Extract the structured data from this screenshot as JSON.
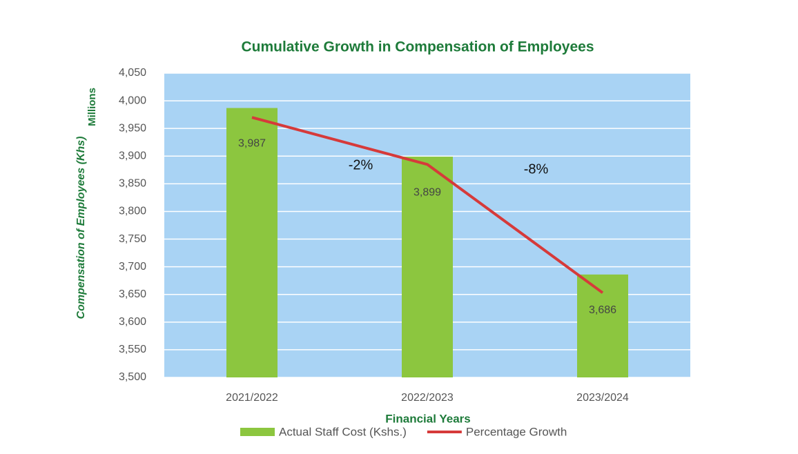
{
  "chart_data": {
    "type": "bar",
    "title": "Cumulative Growth in Compensation of Employees",
    "y_axis_label": "Compensation of Employees (Khs)",
    "y_axis_unit": "Millions",
    "x_axis_label": "Financial Years",
    "categories": [
      "2021/2022",
      "2022/2023",
      "2023/2024"
    ],
    "series": [
      {
        "name": "Actual Staff Cost (Kshs.)",
        "type": "bar",
        "color": "#8cc63f",
        "values": [
          3987,
          3899,
          3686
        ],
        "value_labels": [
          "3,987",
          "3,899",
          "3,686"
        ]
      },
      {
        "name": "Percentage Growth",
        "type": "line",
        "color": "#d63a3a",
        "values": [
          3970,
          3885,
          3653
        ]
      }
    ],
    "annotations": [
      "-2%",
      "-8%"
    ],
    "ylim": [
      3500,
      4050
    ],
    "yticks": [
      {
        "value": 3500,
        "label": "3,500"
      },
      {
        "value": 3550,
        "label": "3,550"
      },
      {
        "value": 3600,
        "label": "3,600"
      },
      {
        "value": 3650,
        "label": "3,650"
      },
      {
        "value": 3700,
        "label": "3,700"
      },
      {
        "value": 3750,
        "label": "3,750"
      },
      {
        "value": 3800,
        "label": "3,800"
      },
      {
        "value": 3850,
        "label": "3,850"
      },
      {
        "value": 3900,
        "label": "3,900"
      },
      {
        "value": 3950,
        "label": "3,950"
      },
      {
        "value": 4000,
        "label": "4,000"
      },
      {
        "value": 4050,
        "label": "4,050"
      }
    ],
    "grid": true,
    "legend": "bottom"
  }
}
